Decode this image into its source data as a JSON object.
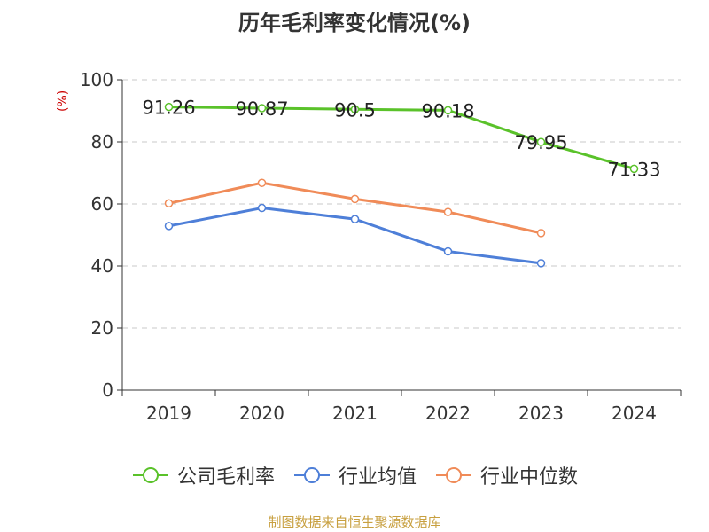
{
  "chart_data": {
    "type": "line",
    "title": "历年毛利率变化情况(%)",
    "xlabel": "",
    "ylabel": "(%)",
    "categories": [
      "2019",
      "2020",
      "2021",
      "2022",
      "2023",
      "2024"
    ],
    "ylim": [
      0,
      100
    ],
    "yticks": [
      0,
      20,
      40,
      60,
      80,
      100
    ],
    "grid": true,
    "legend_position": "bottom",
    "series": [
      {
        "name": "公司毛利率",
        "color": "#5ac22a",
        "values": [
          91.26,
          90.87,
          90.5,
          90.18,
          79.95,
          71.33
        ],
        "labels": [
          "91.26",
          "90.87",
          "90.5",
          "90.18",
          "79.95",
          "71.33"
        ]
      },
      {
        "name": "行业均值",
        "color": "#4e7fd8",
        "values": [
          52.9,
          58.7,
          55.1,
          44.7,
          40.9,
          null
        ]
      },
      {
        "name": "行业中位数",
        "color": "#f08b58",
        "values": [
          60.2,
          66.8,
          61.6,
          57.4,
          50.6,
          null
        ]
      }
    ]
  },
  "source": "制图数据来自恒生聚源数据库"
}
